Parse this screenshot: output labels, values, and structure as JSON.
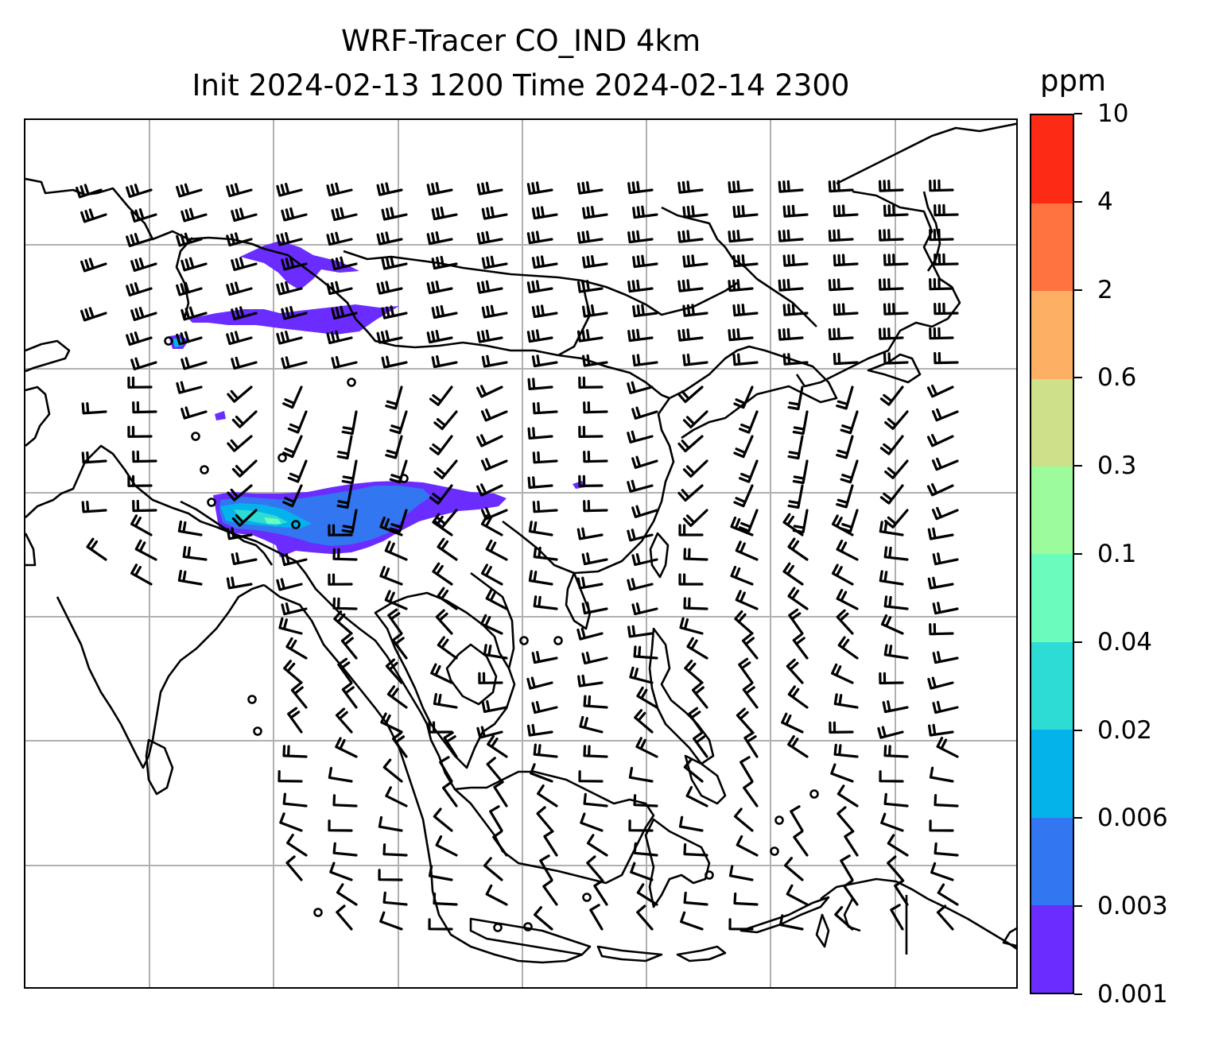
{
  "title": {
    "line1": "WRF-Tracer CO_IND 4km",
    "line2": "Init 2024-02-13 1200 Time 2024-02-14 2300"
  },
  "colorbar": {
    "unit": "ppm",
    "levels": [
      "0.001",
      "0.003",
      "0.006",
      "0.02",
      "0.04",
      "0.1",
      "0.3",
      "0.6",
      "2",
      "4",
      "10"
    ],
    "colors": [
      "#6a2cff",
      "#3276f2",
      "#04b3ea",
      "#2ddcd5",
      "#6afcbd",
      "#9cfb9b",
      "#cfe08a",
      "#fdb064",
      "#fe7340",
      "#fd2a16"
    ]
  },
  "map": {
    "gridlines": true,
    "grid_color": "#b0b0b0",
    "coastline_color": "#000000",
    "wind_barb_color": "#000000",
    "calm_marker": "circle"
  },
  "chart_data": {
    "type": "heatmap",
    "variable": "CO_IND tracer",
    "unit": "ppm",
    "contour_levels": [
      0.001,
      0.003,
      0.006,
      0.02,
      0.04,
      0.1,
      0.3,
      0.6,
      2,
      4,
      10
    ],
    "max_visible_level": 0.1,
    "overlay": "wind barbs"
  }
}
